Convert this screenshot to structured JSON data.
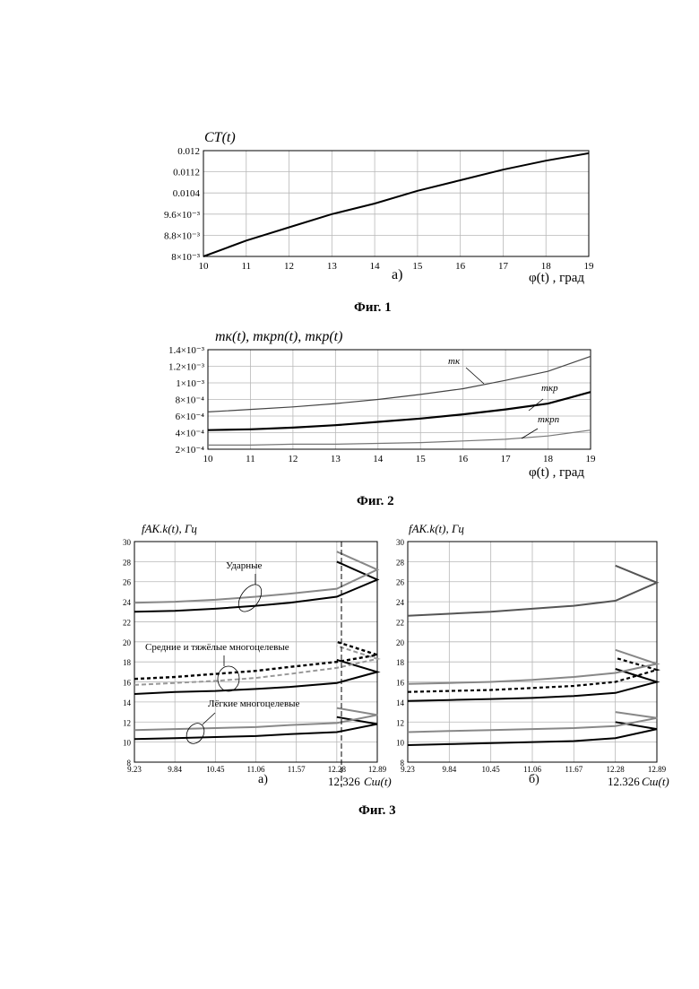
{
  "fig1": {
    "caption": "Фиг. 1",
    "sublabel": "а)",
    "chart_data": {
      "type": "line",
      "ylabel": "CT(t)",
      "xlabel": "φ(t) , град",
      "xlim": [
        10,
        19
      ],
      "ylim": [
        0.008,
        0.012
      ],
      "x_ticks": [
        "10",
        "11",
        "12",
        "13",
        "14",
        "15",
        "16",
        "17",
        "18",
        "19"
      ],
      "y_ticks": [
        "8×10⁻³",
        "8.8×10⁻³",
        "9.6×10⁻³",
        "0.0104",
        "0.0112",
        "0.012"
      ],
      "grid": true,
      "series": [
        {
          "x": [
            10,
            11,
            12,
            13,
            14,
            15,
            16,
            17,
            18,
            19
          ],
          "y": [
            0.008,
            0.0086,
            0.0091,
            0.0096,
            0.01,
            0.01048,
            0.01088,
            0.01128,
            0.01162,
            0.0119
          ]
        }
      ]
    }
  },
  "fig2": {
    "caption": "Фиг. 2",
    "chart_data": {
      "type": "line",
      "ylabel": "mк(t), mкрn(t), mкр(t)",
      "xlabel": "φ(t) , град",
      "xlim": [
        10,
        19
      ],
      "ylim": [
        0.0002,
        0.0014
      ],
      "x_ticks": [
        "10",
        "11",
        "12",
        "13",
        "14",
        "15",
        "16",
        "17",
        "18",
        "19"
      ],
      "y_ticks": [
        "2×10⁻⁴",
        "4×10⁻⁴",
        "6×10⁻⁴",
        "8×10⁻⁴",
        "1×10⁻³",
        "1.2×10⁻³",
        "1.4×10⁻³"
      ],
      "grid": true,
      "series": [
        {
          "name": "mк",
          "x": [
            10,
            11,
            12,
            13,
            14,
            15,
            16,
            17,
            18,
            19
          ],
          "y": [
            0.00065,
            0.00068,
            0.00071,
            0.00075,
            0.0008,
            0.00086,
            0.00093,
            0.00103,
            0.00114,
            0.00132
          ]
        },
        {
          "name": "mкр",
          "x": [
            10,
            11,
            12,
            13,
            14,
            15,
            16,
            17,
            18,
            19
          ],
          "y": [
            0.00043,
            0.00044,
            0.00046,
            0.00049,
            0.00053,
            0.00057,
            0.00062,
            0.00068,
            0.00075,
            0.00089
          ]
        },
        {
          "name": "mкрn",
          "x": [
            10,
            11,
            12,
            13,
            14,
            15,
            16,
            17,
            18,
            19
          ],
          "y": [
            0.00025,
            0.00025,
            0.00026,
            0.00026,
            0.00027,
            0.00028,
            0.0003,
            0.00032,
            0.00036,
            0.00043
          ]
        }
      ]
    }
  },
  "fig3": {
    "caption": "Фиг. 3",
    "panel_a": {
      "sublabel": "а)",
      "ylabel": "fАК.k(t), Гц",
      "xlabel": "Cш(t)",
      "xmark": "12.326",
      "ann_shock": "Ударные",
      "ann_medium": "Средние и тяжёлые многоцелевые",
      "ann_light": "Лёгкие многоцелевые",
      "chart_data": {
        "type": "line",
        "xlim": [
          9.23,
          12.89
        ],
        "ylim": [
          8,
          30
        ],
        "x_ticks": [
          "9.23",
          "9.84",
          "10.45",
          "11.06",
          "11.57",
          "12.28",
          "12.89"
        ],
        "y_ticks": [
          "8",
          "10",
          "12",
          "14",
          "16",
          "18",
          "20",
          "22",
          "24",
          "26",
          "28",
          "30"
        ],
        "grid": true,
        "series": [
          {
            "x": [
              9.23,
              9.84,
              10.45,
              11.06,
              11.57,
              12.28,
              12.89,
              12.28
            ],
            "y": [
              23.0,
              23.1,
              23.3,
              23.6,
              23.9,
              24.5,
              26.2,
              28.0
            ]
          },
          {
            "x": [
              9.23,
              9.84,
              10.45,
              11.06,
              11.57,
              12.28,
              12.89,
              12.28
            ],
            "y": [
              23.9,
              24.0,
              24.2,
              24.5,
              24.8,
              25.3,
              27.2,
              29.0
            ]
          },
          {
            "x": [
              9.23,
              9.84,
              10.45,
              11.06,
              11.57,
              12.28,
              12.89,
              12.28
            ],
            "y": [
              14.8,
              15.0,
              15.1,
              15.3,
              15.5,
              15.9,
              17.0,
              18.2
            ]
          },
          {
            "x": [
              9.23,
              9.84,
              10.45,
              11.06,
              11.57,
              12.28,
              12.89,
              12.28
            ],
            "y": [
              15.7,
              15.9,
              16.1,
              16.4,
              16.8,
              17.4,
              18.3,
              19.6
            ]
          },
          {
            "x": [
              9.23,
              9.84,
              10.45,
              11.06,
              11.57,
              12.28,
              12.89,
              12.28
            ],
            "y": [
              16.3,
              16.5,
              16.8,
              17.1,
              17.5,
              18.0,
              18.7,
              20.0
            ]
          },
          {
            "x": [
              9.23,
              9.84,
              10.45,
              11.06,
              11.57,
              12.28,
              12.89,
              12.28
            ],
            "y": [
              10.3,
              10.4,
              10.5,
              10.6,
              10.8,
              11.0,
              11.8,
              12.5
            ]
          },
          {
            "x": [
              9.23,
              9.84,
              10.45,
              11.06,
              11.57,
              12.28,
              12.89,
              12.28
            ],
            "y": [
              11.2,
              11.3,
              11.4,
              11.5,
              11.7,
              11.9,
              12.7,
              13.4
            ]
          }
        ]
      }
    },
    "panel_b": {
      "sublabel": "б)",
      "ylabel": "fАК.k(t), Гц",
      "xlabel": "Cш(t)",
      "xmark": "12.326",
      "chart_data": {
        "type": "line",
        "xlim": [
          9.23,
          12.89
        ],
        "ylim": [
          8,
          30
        ],
        "x_ticks": [
          "9.23",
          "9.84",
          "10.45",
          "11.06",
          "11.67",
          "12.28",
          "12.89"
        ],
        "y_ticks": [
          "8",
          "10",
          "12",
          "14",
          "16",
          "18",
          "20",
          "22",
          "24",
          "26",
          "28",
          "30"
        ],
        "grid": true,
        "series": [
          {
            "x": [
              9.23,
              9.84,
              10.45,
              11.06,
              11.67,
              12.28,
              12.89,
              12.28
            ],
            "y": [
              22.6,
              22.8,
              23.0,
              23.3,
              23.6,
              24.1,
              25.9,
              27.6
            ]
          },
          {
            "x": [
              9.23,
              9.84,
              10.45,
              11.06,
              11.67,
              12.28,
              12.89,
              12.28
            ],
            "y": [
              14.1,
              14.2,
              14.3,
              14.4,
              14.6,
              14.9,
              16.0,
              17.3
            ]
          },
          {
            "x": [
              9.23,
              9.84,
              10.45,
              11.06,
              11.67,
              12.28,
              12.89,
              12.28
            ],
            "y": [
              15.0,
              15.1,
              15.2,
              15.4,
              15.6,
              16.0,
              17.2,
              18.4
            ]
          },
          {
            "x": [
              9.23,
              9.84,
              10.45,
              11.06,
              11.67,
              12.28,
              12.89,
              12.28
            ],
            "y": [
              15.8,
              15.9,
              16.0,
              16.2,
              16.5,
              16.9,
              17.8,
              19.2
            ]
          },
          {
            "x": [
              9.23,
              9.84,
              10.45,
              11.06,
              11.67,
              12.28,
              12.89,
              12.28
            ],
            "y": [
              9.7,
              9.8,
              9.9,
              10.0,
              10.1,
              10.4,
              11.3,
              12.0
            ]
          },
          {
            "x": [
              9.23,
              9.84,
              10.45,
              11.06,
              11.67,
              12.28,
              12.89,
              12.28
            ],
            "y": [
              11.0,
              11.1,
              11.2,
              11.3,
              11.4,
              11.6,
              12.4,
              13.0
            ]
          }
        ]
      }
    }
  }
}
